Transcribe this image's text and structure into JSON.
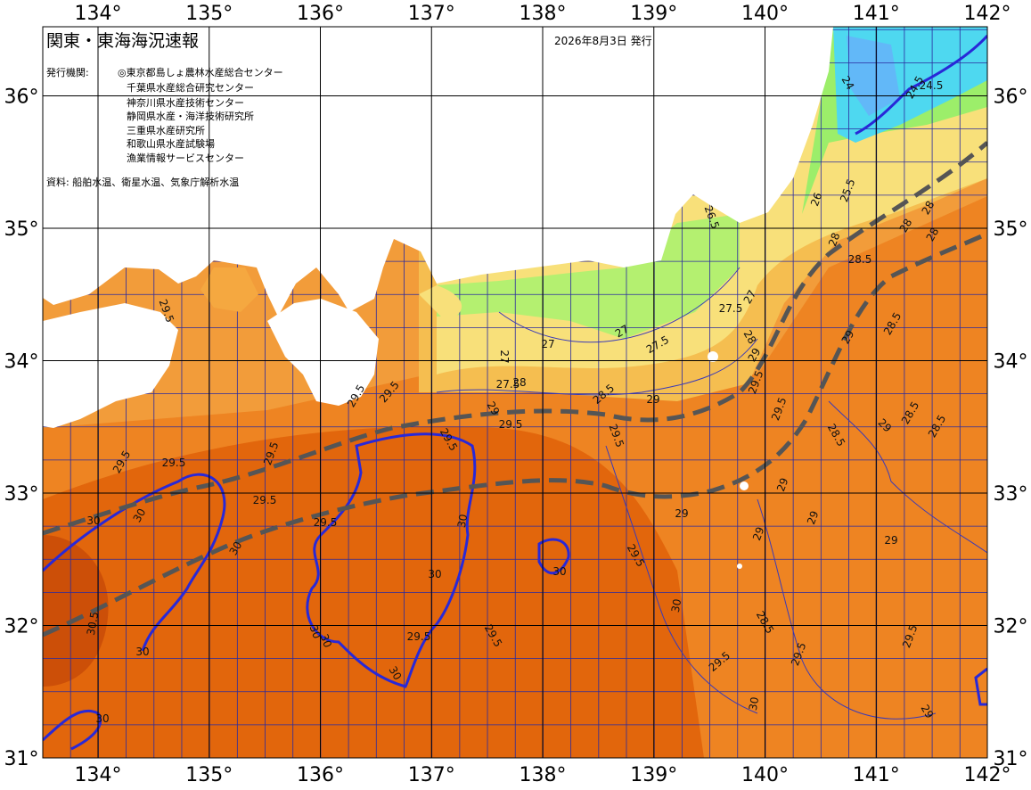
{
  "header": {
    "title": "関東・東海海況速報",
    "date": "2026年8月3日 発行",
    "agency_label": "発行機関:",
    "agencies": [
      "◎東京都島しょ農林水産総合センター",
      "千葉県水産総合研究センター",
      "神奈川県水産技術センター",
      "静岡県水産・海洋技術研究所",
      "三重県水産研究所",
      "和歌山県水産試験場",
      "漁業情報サービスセンター"
    ],
    "source": "資料: 船舶水温、衛星水温、気象庁解析水温"
  },
  "map": {
    "lon_ticks": [
      {
        "value": 134,
        "label": "134°"
      },
      {
        "value": 135,
        "label": "135°"
      },
      {
        "value": 136,
        "label": "136°"
      },
      {
        "value": 137,
        "label": "137°"
      },
      {
        "value": 138,
        "label": "138°"
      },
      {
        "value": 139,
        "label": "139°"
      },
      {
        "value": 140,
        "label": "140°"
      },
      {
        "value": 141,
        "label": "141°"
      },
      {
        "value": 142,
        "label": "142°"
      }
    ],
    "lat_ticks": [
      {
        "value": 36,
        "label": "36°"
      },
      {
        "value": 35,
        "label": "35°"
      },
      {
        "value": 34,
        "label": "34°"
      },
      {
        "value": 33,
        "label": "33°"
      },
      {
        "value": 32,
        "label": "32°"
      },
      {
        "value": 31,
        "label": "31°"
      }
    ],
    "contour_labels": [
      "24",
      "24.5",
      "26",
      "25.5",
      "24.5",
      "28",
      "28",
      "28",
      "26.5",
      "28.5",
      "28",
      "27",
      "27.5",
      "28",
      "29",
      "27",
      "27.5",
      "27",
      "27.5",
      "27",
      "28",
      "28.5",
      "29",
      "29",
      "28.5",
      "28.5",
      "28.5",
      "29",
      "28.5",
      "29.5",
      "29.5",
      "29.5",
      "29.5",
      "29",
      "29.5",
      "29.5",
      "29.5",
      "29.5",
      "29.5",
      "29.5",
      "29.5",
      "29",
      "29.5",
      "29",
      "29",
      "29",
      "28.5",
      "29",
      "29.5",
      "29",
      "29.5",
      "29.5",
      "30",
      "30",
      "30",
      "30",
      "30",
      "30",
      "30",
      "30",
      "30",
      "30",
      "30.5",
      "30",
      "30",
      "30",
      "29.5",
      "29.5",
      "29.5",
      "29.5"
    ]
  }
}
